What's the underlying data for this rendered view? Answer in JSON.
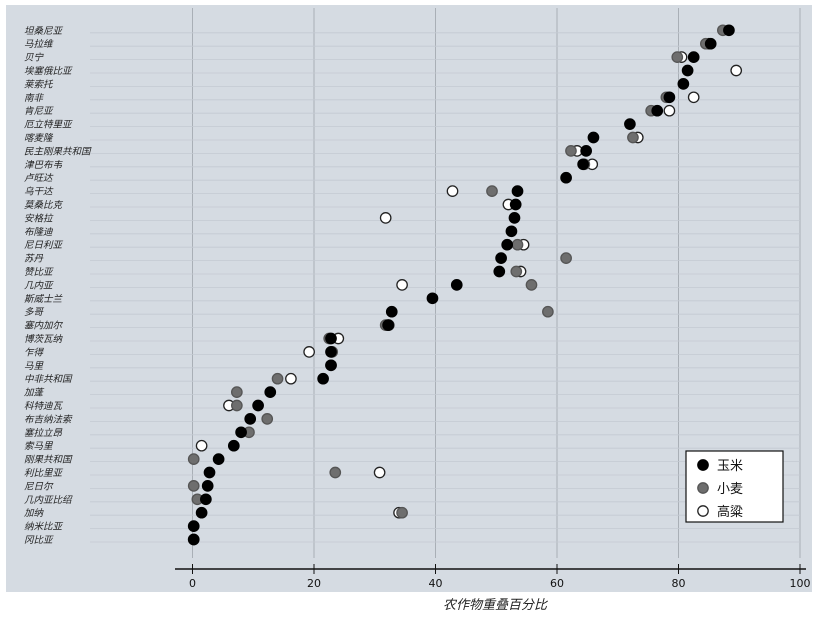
{
  "chart_data": {
    "type": "scatter",
    "xlabel": "农作物重叠百分比",
    "ylabel": "",
    "xlim": [
      0,
      100
    ],
    "xticks": [
      0,
      20,
      40,
      60,
      80,
      100
    ],
    "grid": "vertical",
    "legend_position": "bottom-right",
    "colors": {
      "玉米": "#000000",
      "小麦": "#6e6e6e",
      "高粱": "#ffffff",
      "background": "#d5dbe2",
      "grid": "#a9afb6"
    },
    "categories": [
      "坦桑尼亚",
      "马拉维",
      "贝宁",
      "埃塞俄比亚",
      "莱索托",
      "南非",
      "肯尼亚",
      "厄立特里亚",
      "喀麦隆",
      "民主刚果共和国",
      "津巴布韦",
      "卢旺达",
      "乌干达",
      "莫桑比克",
      "安格拉",
      "布隆迪",
      "尼日利亚",
      "苏丹",
      "赞比亚",
      "几内亚",
      "斯威士兰",
      "多哥",
      "塞内加尔",
      "博茨瓦纳",
      "乍得",
      "马里",
      "中非共和国",
      "加蓬",
      "科特迪瓦",
      "布吉纳法索",
      "塞拉立昂",
      "索马里",
      "刚果共和国",
      "利比里亚",
      "尼日尔",
      "几内亚比绍",
      "加纳",
      "纳米比亚",
      "冈比亚"
    ],
    "series": [
      {
        "name": "玉米",
        "values": [
          88.3,
          85.3,
          82.5,
          81.5,
          80.8,
          78.5,
          76.5,
          72,
          66,
          64.8,
          64.3,
          61.5,
          53.5,
          53.2,
          53,
          52.5,
          51.8,
          50.8,
          50.5,
          43.5,
          39.5,
          32.8,
          32.2,
          22.8,
          22.8,
          22.8,
          21.5,
          12.8,
          10.8,
          9.5,
          8,
          6.8,
          4.3,
          2.8,
          2.5,
          2.2,
          1.5,
          0.2,
          0.2
        ]
      },
      {
        "name": "小麦",
        "values": [
          87.3,
          84.5,
          79.8,
          null,
          null,
          78,
          75.5,
          null,
          72.5,
          62.3,
          64.5,
          null,
          49.3,
          null,
          null,
          null,
          53.5,
          61.5,
          53.3,
          55.8,
          null,
          58.5,
          31.8,
          22.5,
          23,
          22.8,
          14,
          7.3,
          7.3,
          12.3,
          9.3,
          null,
          0.2,
          23.5,
          0.2,
          0.8,
          34.5,
          null,
          0.2
        ]
      },
      {
        "name": "高粱",
        "values": [
          null,
          85,
          80.5,
          89.5,
          null,
          82.5,
          78.5,
          null,
          73.3,
          63.3,
          65.8,
          null,
          42.8,
          52,
          31.8,
          null,
          54.5,
          null,
          54,
          34.5,
          null,
          null,
          32.3,
          24,
          19.2,
          null,
          16.2,
          null,
          6,
          null,
          null,
          1.5,
          null,
          30.8,
          null,
          null,
          34,
          null,
          null
        ]
      }
    ]
  }
}
